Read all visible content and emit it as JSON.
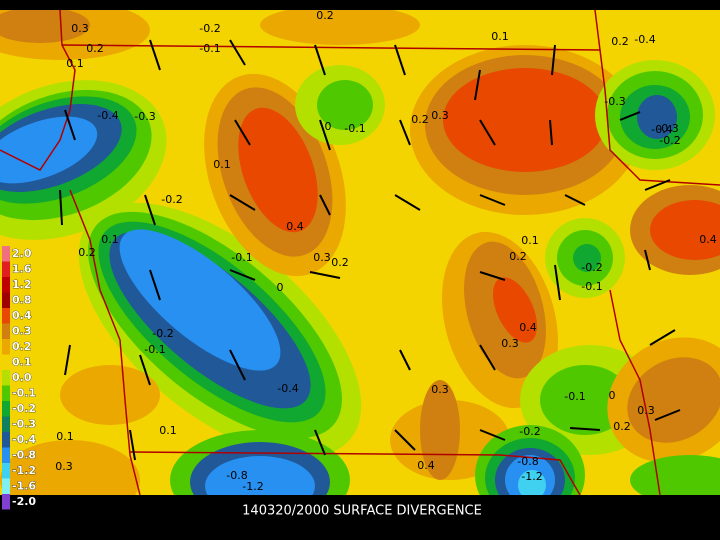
{
  "caption": "140320/2000 SURFACE DIVERGENCE",
  "legend": [
    {
      "label": "2.0",
      "color": "#f07080"
    },
    {
      "label": "1.6",
      "color": "#e02020"
    },
    {
      "label": "1.2",
      "color": "#c00000"
    },
    {
      "label": "0.8",
      "color": "#a00000"
    },
    {
      "label": "0.4",
      "color": "#e84800"
    },
    {
      "label": "0.3",
      "color": "#d08010"
    },
    {
      "label": "0.2",
      "color": "#eaa800"
    },
    {
      "label": "0.1",
      "color": "#f4d400"
    },
    {
      "label": "0.0",
      "color": "#b4e000"
    },
    {
      "label": "-0.1",
      "color": "#50c800"
    },
    {
      "label": "-0.2",
      "color": "#10a830"
    },
    {
      "label": "-0.3",
      "color": "#108060"
    },
    {
      "label": "-0.4",
      "color": "#205898"
    },
    {
      "label": "-0.8",
      "color": "#2890f0"
    },
    {
      "label": "-1.2",
      "color": "#40d0f0"
    },
    {
      "label": "-1.6",
      "color": "#80f0f0"
    },
    {
      "label": "-2.0",
      "color": "#8040d0"
    }
  ],
  "contour_labels": [
    "0.3",
    "-0.2",
    "0.2",
    "-0.1",
    "0.2",
    "0.1",
    "0.2",
    "-0.4",
    "0.1",
    "-0.4",
    "-0.3",
    "0",
    "-0.1",
    "0.2",
    "0.3",
    "0.1",
    "-0.2",
    "0.4",
    "-0.4",
    "0.3",
    "0.2",
    "-0.1",
    "0",
    "0.1",
    "0.2",
    "-0.2",
    "-0.1",
    "0.4",
    "0.3",
    "-0.2",
    "-0.1",
    "-0.3",
    "0.3",
    "-0.4",
    "0.3",
    "0.1",
    "-0.1",
    "0",
    "0.2",
    "0.4",
    "-0.8",
    "-1.2",
    "-0.2",
    "-0.8",
    "-1.2",
    "0.3",
    "0.1",
    "-0.3",
    "-0.2",
    "0.4",
    "0.2",
    "0.1"
  ]
}
